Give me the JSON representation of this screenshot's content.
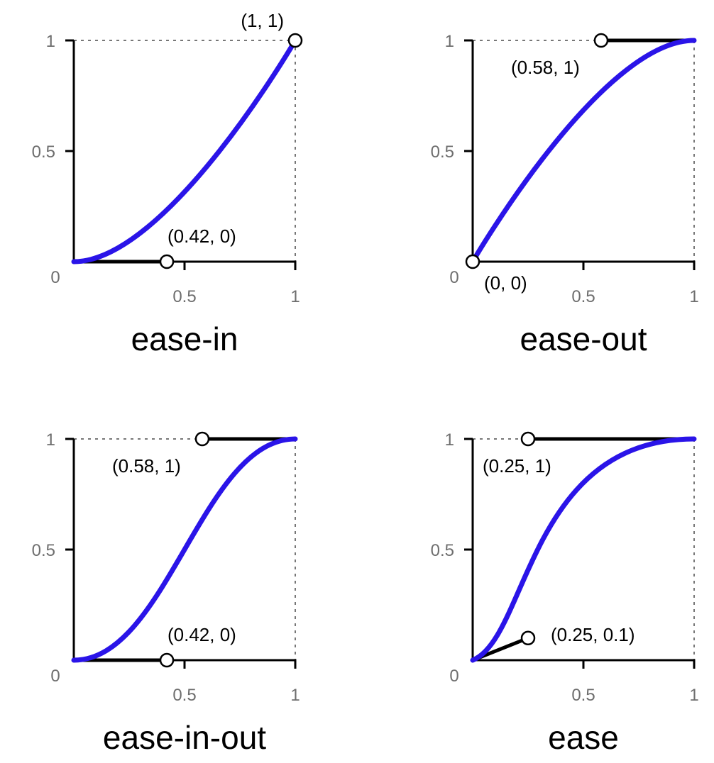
{
  "colors": {
    "curve": "#2a14e8",
    "axis": "#000000",
    "guide": "#777777",
    "tick_text": "#6e6e6e",
    "handle": "#000000",
    "point_fill": "#ffffff"
  },
  "tick_labels": {
    "zero": "0",
    "half": "0.5",
    "one": "1"
  },
  "panels": [
    {
      "title": "ease-in",
      "control_points": [
        [
          0.42,
          0
        ],
        [
          1,
          1
        ]
      ],
      "labels": [
        "(0.42, 0)",
        "(1, 1)"
      ],
      "marked_points": [
        [
          0.42,
          0
        ],
        [
          1,
          1
        ]
      ]
    },
    {
      "title": "ease-out",
      "control_points": [
        [
          0,
          0
        ],
        [
          0.58,
          1
        ]
      ],
      "labels": [
        "(0, 0)",
        "(0.58, 1)"
      ],
      "marked_points": [
        [
          0,
          0
        ],
        [
          0.58,
          1
        ]
      ]
    },
    {
      "title": "ease-in-out",
      "control_points": [
        [
          0.42,
          0
        ],
        [
          0.58,
          1
        ]
      ],
      "labels": [
        "(0.42, 0)",
        "(0.58, 1)"
      ],
      "marked_points": [
        [
          0.42,
          0
        ],
        [
          0.58,
          1
        ]
      ]
    },
    {
      "title": "ease",
      "control_points": [
        [
          0.25,
          0.1
        ],
        [
          0.25,
          1
        ]
      ],
      "labels": [
        "(0.25, 0.1)",
        "(0.25, 1)"
      ],
      "marked_points": [
        [
          0.25,
          0.1
        ],
        [
          0.25,
          1
        ]
      ]
    }
  ]
}
